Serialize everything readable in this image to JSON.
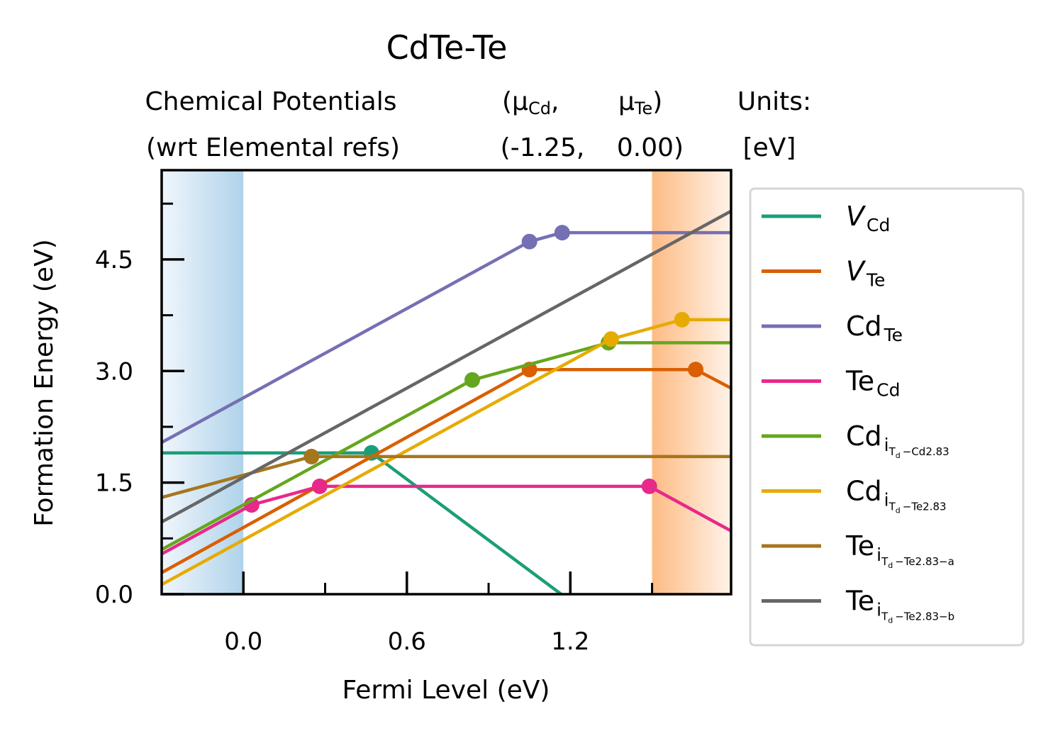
{
  "chart_data": {
    "type": "line",
    "title": "CdTe-Te",
    "header": {
      "line1": [
        "Chemical Potentials",
        "(μ",
        "Cd",
        ",",
        "μ",
        "Te",
        ")",
        "Units:"
      ],
      "line2": [
        "(wrt Elemental refs)",
        "(-1.25,",
        "0.00)",
        "[eV]"
      ]
    },
    "xlabel": "Fermi Level (eV)",
    "ylabel": "Formation Energy (eV)",
    "xlim": [
      -0.3,
      1.79
    ],
    "ylim": [
      0,
      5.7
    ],
    "xticks": [
      0.0,
      0.6,
      1.2
    ],
    "xtick_labels": [
      "0.0",
      "0.6",
      "1.2"
    ],
    "yticks": [
      0.0,
      1.5,
      3.0,
      4.5
    ],
    "ytick_labels": [
      "0.0",
      "1.5",
      "3.0",
      "4.5"
    ],
    "xminor": [
      0.3,
      0.9,
      1.5
    ],
    "yminor": [
      0.75,
      2.25,
      3.75,
      5.25
    ],
    "valence_band_max": 0.0,
    "conduction_band_min": 1.5,
    "band_colors": {
      "vbm": "#b0d3ea",
      "cbm": "#fdbb84"
    },
    "legend_position": "right, outside",
    "series": [
      {
        "label": {
          "main": "V",
          "sub": "Cd",
          "italic": true
        },
        "color": "#1b9e77",
        "x": [
          -0.3,
          0.47,
          1.79
        ],
        "y": [
          1.9,
          1.9,
          -1.7
        ],
        "markers": [
          [
            0.47,
            1.9
          ]
        ]
      },
      {
        "label": {
          "main": "V",
          "sub": "Te",
          "italic": true
        },
        "color": "#d95f02",
        "x": [
          -0.3,
          1.05,
          1.66,
          1.79
        ],
        "y": [
          0.29,
          3.02,
          3.02,
          2.77
        ],
        "markers": [
          [
            1.05,
            3.02
          ],
          [
            1.66,
            3.02
          ]
        ]
      },
      {
        "label": {
          "main": "Cd",
          "sub": "Te"
        },
        "color": "#7570b3",
        "x": [
          -0.3,
          1.05,
          1.17,
          1.79
        ],
        "y": [
          2.04,
          4.74,
          4.86,
          4.86
        ],
        "markers": [
          [
            1.05,
            4.74
          ],
          [
            1.17,
            4.86
          ]
        ]
      },
      {
        "label": {
          "main": "Te",
          "sub": "Cd"
        },
        "color": "#e7298a",
        "x": [
          -0.3,
          0.03,
          0.28,
          1.49,
          1.79
        ],
        "y": [
          0.54,
          1.2,
          1.45,
          1.45,
          0.85
        ],
        "markers": [
          [
            0.03,
            1.2
          ],
          [
            0.28,
            1.45
          ],
          [
            1.49,
            1.45
          ]
        ]
      },
      {
        "label": {
          "main": "Cd",
          "sub": "i",
          "subsub": "T",
          "subsubsub": "d",
          "tail": "−Cd2.83"
        },
        "color": "#66a61e",
        "x": [
          -0.3,
          0.84,
          1.34,
          1.79
        ],
        "y": [
          0.6,
          2.88,
          3.38,
          3.38
        ],
        "markers": [
          [
            0.84,
            2.88
          ],
          [
            1.34,
            3.38
          ]
        ]
      },
      {
        "label": {
          "main": "Cd",
          "sub": "i",
          "subsub": "T",
          "subsubsub": "d",
          "tail": "−Te2.83"
        },
        "color": "#e6ab02",
        "x": [
          -0.3,
          1.35,
          1.61,
          1.79
        ],
        "y": [
          0.13,
          3.43,
          3.69,
          3.69
        ],
        "markers": [
          [
            1.35,
            3.43
          ],
          [
            1.61,
            3.69
          ]
        ]
      },
      {
        "label": {
          "main": "Te",
          "sub": "i",
          "subsub": "T",
          "subsubsub": "d",
          "tail": "−Te2.83−a"
        },
        "color": "#a6761d",
        "x": [
          -0.3,
          0.25,
          1.79
        ],
        "y": [
          1.3,
          1.85,
          1.85
        ],
        "markers": [
          [
            0.25,
            1.85
          ]
        ]
      },
      {
        "label": {
          "main": "Te",
          "sub": "i",
          "subsub": "T",
          "subsubsub": "d",
          "tail": "−Te2.83−b"
        },
        "color": "#666666",
        "x": [
          -0.3,
          1.79
        ],
        "y": [
          0.97,
          5.15
        ],
        "markers": []
      }
    ]
  }
}
